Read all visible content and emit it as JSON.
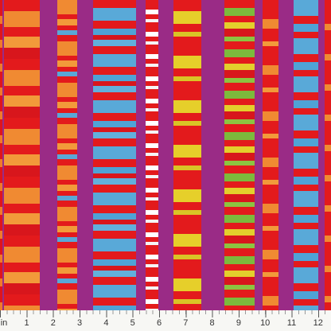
{
  "ruler": {
    "unit": "in",
    "labels": [
      1,
      2,
      3,
      4,
      5,
      6,
      7,
      8,
      9,
      10,
      11,
      12
    ]
  }
}
